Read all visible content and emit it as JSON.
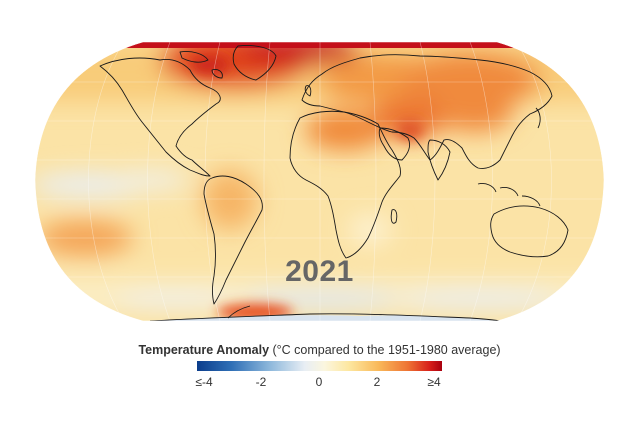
{
  "map": {
    "year": "2021",
    "legend_title_bold": "Temperature Anomaly",
    "legend_title_rest": " (°C compared to the 1951-1980 average)",
    "legend_ticks": [
      "≤-4",
      "-2",
      "0",
      "2",
      "≥4"
    ],
    "scale_colors": {
      "cold": "#0b3d8c",
      "neutral": "#f5f3ec",
      "warm": "#f2a04a",
      "hot": "#b8000f"
    }
  }
}
